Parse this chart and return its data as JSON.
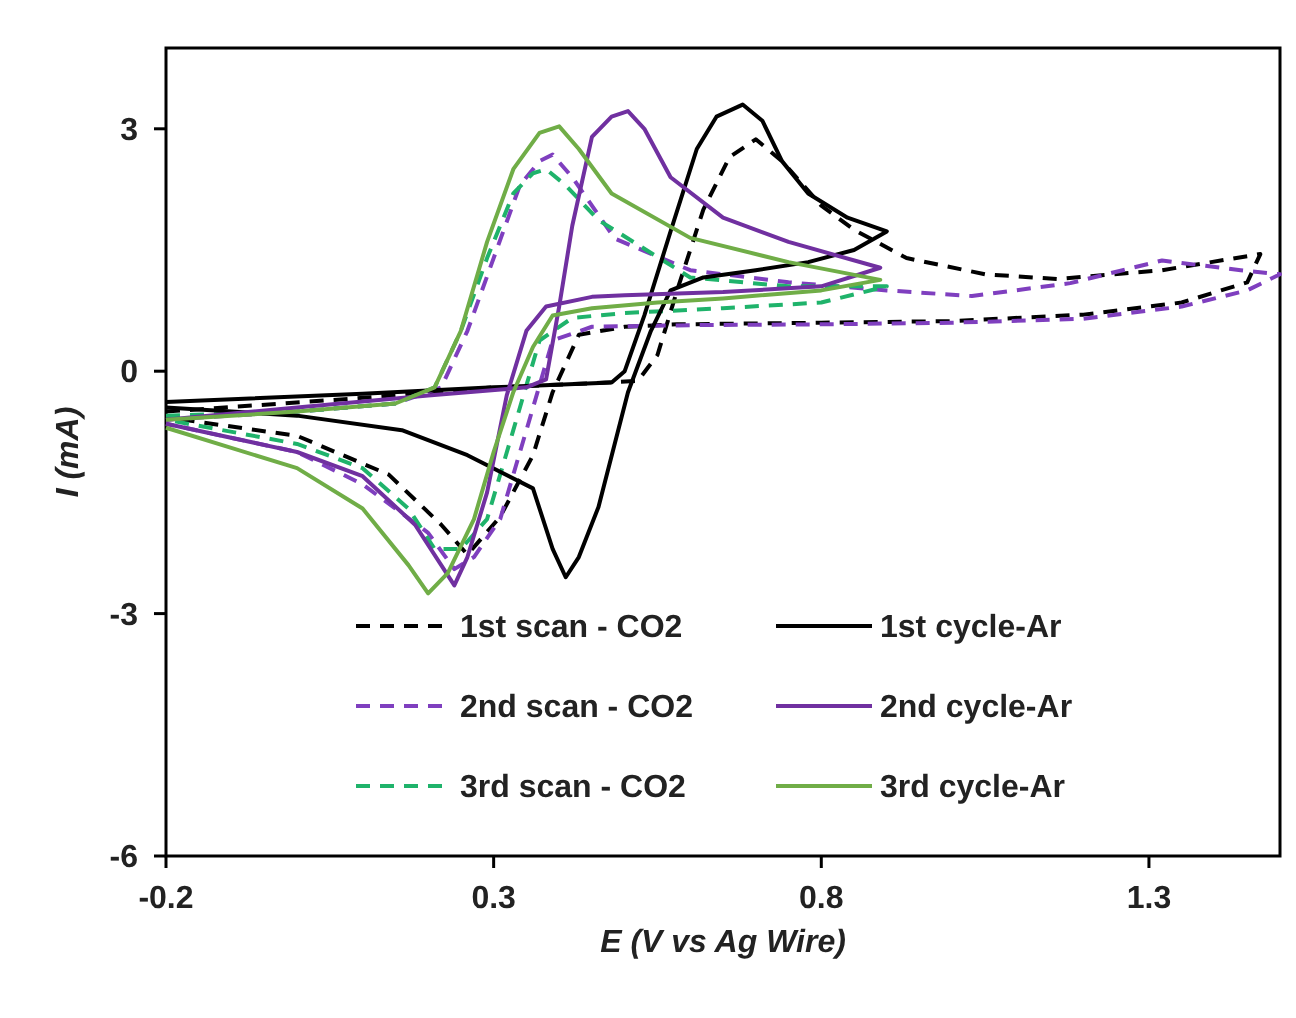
{
  "chart_data": {
    "type": "line",
    "xlabel": "E (V vs Ag Wire)",
    "ylabel": "I (mA)",
    "xlim": [
      -0.2,
      1.5
    ],
    "ylim": [
      -6,
      4
    ],
    "xticks": [
      -0.2,
      0.3,
      0.8,
      1.3
    ],
    "yticks": [
      -6,
      -3,
      0,
      3
    ],
    "grid": false,
    "legend": "bottom",
    "marker": "none",
    "series": [
      {
        "name": "1st scan - CO2",
        "color": "#000000",
        "line_style": "dashed",
        "x": [
          -0.2,
          0.1,
          0.3,
          0.45,
          0.52,
          0.55,
          0.58,
          0.62,
          0.66,
          0.7,
          0.74,
          0.8,
          0.85,
          0.93,
          1.05,
          1.16,
          1.32,
          1.47,
          1.45,
          1.35,
          1.2,
          1.0,
          0.8,
          0.58,
          0.5,
          0.43,
          0.39,
          0.36,
          0.31,
          0.26,
          0.22,
          0.14,
          0.0,
          -0.2
        ],
        "values": [
          -0.5,
          -0.33,
          -0.2,
          -0.15,
          -0.12,
          0.2,
          1.0,
          2.0,
          2.65,
          2.87,
          2.6,
          2.05,
          1.75,
          1.4,
          1.2,
          1.14,
          1.25,
          1.45,
          1.1,
          0.85,
          0.7,
          0.62,
          0.6,
          0.58,
          0.55,
          0.45,
          -0.26,
          -1.04,
          -1.8,
          -2.27,
          -1.9,
          -1.28,
          -0.8,
          -0.57
        ]
      },
      {
        "name": "2nd scan - CO2",
        "color": "#7f3fbf",
        "line_style": "dashed",
        "x": [
          -0.2,
          0.0,
          0.15,
          0.22,
          0.26,
          0.3,
          0.34,
          0.37,
          0.39,
          0.42,
          0.485,
          0.6,
          0.75,
          0.9,
          1.03,
          1.18,
          1.32,
          1.44,
          1.5,
          1.45,
          1.35,
          1.2,
          1.0,
          0.8,
          0.6,
          0.45,
          0.39,
          0.35,
          0.31,
          0.27,
          0.24,
          0.2,
          0.1,
          0.0,
          -0.2
        ],
        "values": [
          -0.6,
          -0.5,
          -0.4,
          -0.2,
          0.5,
          1.4,
          2.3,
          2.6,
          2.68,
          2.4,
          1.64,
          1.25,
          1.1,
          1.0,
          0.93,
          1.09,
          1.37,
          1.25,
          1.2,
          1.0,
          0.8,
          0.65,
          0.6,
          0.58,
          0.57,
          0.55,
          0.38,
          -0.73,
          -1.83,
          -2.3,
          -2.45,
          -2.0,
          -1.4,
          -1.0,
          -0.65
        ]
      },
      {
        "name": "3rd scan - CO2",
        "color": "#1fb36b",
        "line_style": "dashed",
        "x": [
          -0.2,
          0.0,
          0.15,
          0.21,
          0.25,
          0.29,
          0.33,
          0.36,
          0.38,
          0.41,
          0.46,
          0.6,
          0.75,
          0.9,
          0.8,
          0.65,
          0.5,
          0.42,
          0.37,
          0.33,
          0.29,
          0.25,
          0.21,
          0.17,
          0.1,
          0.0,
          -0.2
        ],
        "values": [
          -0.55,
          -0.5,
          -0.4,
          -0.2,
          0.5,
          1.4,
          2.2,
          2.45,
          2.5,
          2.3,
          1.87,
          1.16,
          1.05,
          1.05,
          0.85,
          0.78,
          0.72,
          0.66,
          0.38,
          -0.73,
          -1.83,
          -2.2,
          -2.2,
          -1.7,
          -1.2,
          -0.9,
          -0.6
        ]
      },
      {
        "name": "1st cycle-Ar",
        "color": "#000000",
        "line_style": "solid",
        "x": [
          -0.2,
          0.1,
          0.3,
          0.48,
          0.5,
          0.53,
          0.57,
          0.61,
          0.64,
          0.68,
          0.71,
          0.74,
          0.78,
          0.84,
          0.9,
          0.85,
          0.78,
          0.7,
          0.62,
          0.57,
          0.54,
          0.505,
          0.46,
          0.43,
          0.41,
          0.39,
          0.36,
          0.26,
          0.16,
          0.0,
          -0.2
        ],
        "values": [
          -0.38,
          -0.28,
          -0.2,
          -0.14,
          0.0,
          0.69,
          1.73,
          2.75,
          3.15,
          3.3,
          3.1,
          2.6,
          2.2,
          1.9,
          1.73,
          1.5,
          1.35,
          1.25,
          1.16,
          1.0,
          0.5,
          -0.26,
          -1.68,
          -2.3,
          -2.55,
          -2.2,
          -1.45,
          -1.04,
          -0.73,
          -0.55,
          -0.45
        ]
      },
      {
        "name": "2nd cycle-Ar",
        "color": "#7030a0",
        "line_style": "solid",
        "x": [
          -0.2,
          0.0,
          0.2,
          0.35,
          0.38,
          0.4,
          0.42,
          0.45,
          0.48,
          0.505,
          0.53,
          0.57,
          0.65,
          0.75,
          0.89,
          0.8,
          0.65,
          0.5,
          0.45,
          0.38,
          0.35,
          0.32,
          0.29,
          0.26,
          0.24,
          0.22,
          0.18,
          0.1,
          0.0,
          -0.2
        ],
        "values": [
          -0.6,
          -0.45,
          -0.3,
          -0.2,
          -0.1,
          0.8,
          1.8,
          2.9,
          3.15,
          3.22,
          3.0,
          2.4,
          1.9,
          1.6,
          1.28,
          1.05,
          0.98,
          0.94,
          0.92,
          0.8,
          0.5,
          -0.3,
          -1.5,
          -2.3,
          -2.65,
          -2.4,
          -1.9,
          -1.3,
          -1.0,
          -0.65
        ]
      },
      {
        "name": "3rd cycle-Ar",
        "color": "#70ad47",
        "line_style": "solid",
        "x": [
          -0.2,
          0.0,
          0.15,
          0.21,
          0.25,
          0.29,
          0.33,
          0.37,
          0.4,
          0.43,
          0.48,
          0.6,
          0.75,
          0.89,
          0.8,
          0.65,
          0.55,
          0.45,
          0.39,
          0.36,
          0.33,
          0.3,
          0.27,
          0.23,
          0.2,
          0.17,
          0.1,
          0.0,
          -0.2
        ],
        "values": [
          -0.6,
          -0.5,
          -0.4,
          -0.2,
          0.5,
          1.6,
          2.5,
          2.95,
          3.03,
          2.75,
          2.2,
          1.65,
          1.35,
          1.13,
          1.0,
          0.9,
          0.85,
          0.78,
          0.69,
          0.3,
          -0.26,
          -1.0,
          -1.83,
          -2.5,
          -2.75,
          -2.4,
          -1.7,
          -1.2,
          -0.7
        ]
      }
    ]
  }
}
